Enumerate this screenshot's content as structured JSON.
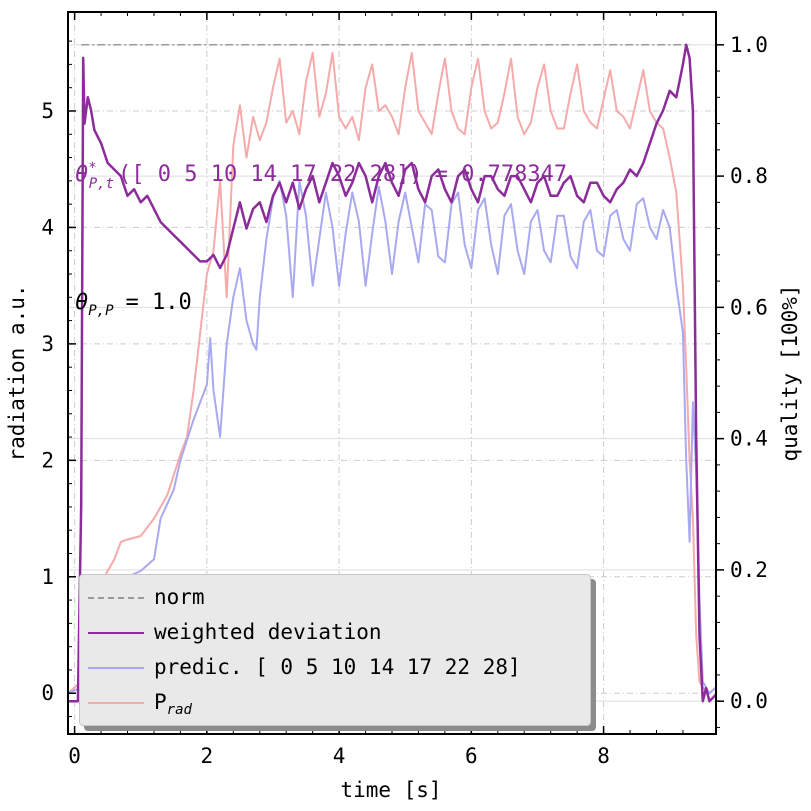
{
  "chart_data": {
    "type": "line",
    "xlabel": "time [s]",
    "ylabel_left": "radiation a.u.",
    "ylabel_right": "quality [100%]",
    "xlim": [
      -0.1,
      9.7
    ],
    "ylim_left": [
      -0.35,
      5.85
    ],
    "ylim_right": [
      -0.05,
      1.05
    ],
    "x_ticks": [
      "0",
      "2",
      "4",
      "6",
      "8"
    ],
    "y_left_ticks": [
      "0",
      "1",
      "2",
      "3",
      "4",
      "5"
    ],
    "y_right_ticks": [
      "0.0",
      "0.2",
      "0.4",
      "0.6",
      "0.8",
      "1.0"
    ],
    "grid": true,
    "legend_placement": "lower-left",
    "colors": {
      "norm": "#9a9a9a",
      "weighted": "#8b2c9a",
      "predic": "#a9a9f2",
      "prad": "#f6aaaa",
      "legend_bg": "#e9e9e9"
    },
    "annotations": {
      "theta_eq_text": "= 0.778347",
      "theta_pp_text": "= 1.0",
      "theta_sym": "θ",
      "theta_sub_pt": "P,t",
      "theta_sub_pp": "P,P",
      "theta_star": "*",
      "arg_text": "([ 0  5 10 14 17 22 28])"
    },
    "legend": {
      "norm": "norm",
      "weighted": "weighted deviation",
      "predic": "predic. [ 0  5 10 14 17 22 28]",
      "prad_main": "P",
      "prad_sub": "rad"
    },
    "series": [
      {
        "name": "norm",
        "axis": "right",
        "x": [
          0.1,
          9.3
        ],
        "y": [
          1.0,
          1.0
        ]
      },
      {
        "name": "P_rad",
        "axis": "left",
        "x": [
          -0.1,
          0.1,
          0.3,
          0.4,
          0.5,
          0.6,
          0.7,
          0.8,
          1.0,
          1.2,
          1.4,
          1.6,
          1.7,
          1.8,
          2.0,
          2.1,
          2.2,
          2.3,
          2.4,
          2.5,
          2.6,
          2.7,
          2.8,
          2.9,
          3.0,
          3.1,
          3.2,
          3.3,
          3.4,
          3.5,
          3.6,
          3.7,
          3.8,
          3.9,
          4.0,
          4.1,
          4.2,
          4.3,
          4.4,
          4.5,
          4.6,
          4.7,
          4.8,
          4.9,
          5.0,
          5.1,
          5.2,
          5.3,
          5.4,
          5.5,
          5.6,
          5.7,
          5.8,
          5.9,
          6.0,
          6.1,
          6.2,
          6.3,
          6.4,
          6.5,
          6.6,
          6.7,
          6.8,
          6.9,
          7.0,
          7.1,
          7.2,
          7.3,
          7.4,
          7.5,
          7.6,
          7.7,
          7.8,
          7.9,
          8.0,
          8.1,
          8.2,
          8.3,
          8.4,
          8.5,
          8.6,
          8.7,
          8.8,
          8.9,
          9.0,
          9.1,
          9.2,
          9.25,
          9.3,
          9.35,
          9.4,
          9.45,
          9.5,
          9.6,
          9.7
        ],
        "y": [
          0.0,
          0.1,
          0.6,
          0.95,
          1.05,
          1.15,
          1.3,
          1.32,
          1.35,
          1.5,
          1.7,
          2.05,
          2.2,
          2.6,
          3.6,
          3.8,
          4.4,
          3.4,
          4.7,
          5.05,
          4.6,
          4.95,
          4.75,
          4.9,
          5.2,
          5.45,
          4.9,
          5.0,
          4.8,
          5.25,
          5.5,
          4.95,
          5.15,
          5.5,
          4.95,
          4.85,
          4.95,
          4.75,
          5.2,
          5.4,
          5.0,
          5.05,
          4.95,
          4.8,
          5.2,
          5.5,
          5.0,
          4.9,
          4.8,
          5.15,
          5.45,
          5.0,
          4.85,
          4.8,
          5.2,
          5.45,
          5.0,
          4.85,
          4.9,
          5.15,
          5.45,
          4.95,
          4.8,
          4.9,
          5.2,
          5.4,
          5.0,
          4.85,
          4.85,
          5.15,
          5.4,
          5.0,
          4.9,
          4.85,
          5.1,
          5.35,
          5.0,
          4.95,
          4.85,
          5.1,
          5.35,
          5.0,
          4.9,
          4.85,
          4.6,
          4.3,
          3.5,
          2.8,
          2.0,
          1.5,
          0.5,
          0.1,
          0.05,
          0.0,
          0.05
        ]
      },
      {
        "name": "predic. [ 0  5 10 14 17 22 28]",
        "axis": "left",
        "x": [
          -0.1,
          0.1,
          0.3,
          0.4,
          0.5,
          0.6,
          0.8,
          1.0,
          1.2,
          1.3,
          1.5,
          1.6,
          1.8,
          2.0,
          2.05,
          2.1,
          2.2,
          2.3,
          2.4,
          2.5,
          2.6,
          2.7,
          2.75,
          2.8,
          2.9,
          3.0,
          3.1,
          3.2,
          3.3,
          3.4,
          3.5,
          3.6,
          3.7,
          3.8,
          3.9,
          4.0,
          4.1,
          4.2,
          4.3,
          4.4,
          4.5,
          4.6,
          4.7,
          4.8,
          4.9,
          5.0,
          5.1,
          5.2,
          5.3,
          5.4,
          5.5,
          5.6,
          5.7,
          5.8,
          5.9,
          6.0,
          6.1,
          6.2,
          6.3,
          6.4,
          6.5,
          6.6,
          6.7,
          6.8,
          6.9,
          7.0,
          7.1,
          7.2,
          7.3,
          7.4,
          7.5,
          7.6,
          7.7,
          7.8,
          7.9,
          8.0,
          8.1,
          8.2,
          8.3,
          8.4,
          8.5,
          8.6,
          8.7,
          8.8,
          8.9,
          9.0,
          9.1,
          9.2,
          9.25,
          9.3,
          9.35,
          9.4,
          9.45,
          9.5,
          9.6,
          9.7
        ],
        "y": [
          0.0,
          0.05,
          0.55,
          0.8,
          0.95,
          1.0,
          1.0,
          1.05,
          1.15,
          1.5,
          1.75,
          2.0,
          2.35,
          2.65,
          3.05,
          2.6,
          2.2,
          3.0,
          3.4,
          3.65,
          3.2,
          3.0,
          2.95,
          3.4,
          3.9,
          4.25,
          4.4,
          4.1,
          3.4,
          4.4,
          4.1,
          3.5,
          3.9,
          4.3,
          4.0,
          3.5,
          3.95,
          4.3,
          4.05,
          3.5,
          3.95,
          4.35,
          4.05,
          3.6,
          4.05,
          4.3,
          4.0,
          3.7,
          4.2,
          4.15,
          3.75,
          3.7,
          4.2,
          4.3,
          3.85,
          3.65,
          4.15,
          4.25,
          3.85,
          3.6,
          4.1,
          4.2,
          3.8,
          3.6,
          4.05,
          4.15,
          3.8,
          3.7,
          4.1,
          4.1,
          3.75,
          3.65,
          4.05,
          4.15,
          3.8,
          3.75,
          4.1,
          4.15,
          3.9,
          3.8,
          4.2,
          4.25,
          4.0,
          3.9,
          4.15,
          4.0,
          3.5,
          3.1,
          2.0,
          1.3,
          2.5,
          1.9,
          0.8,
          0.1,
          0.0,
          0.05
        ]
      },
      {
        "name": "weighted deviation",
        "axis": "right",
        "x": [
          -0.1,
          0.05,
          0.1,
          0.13,
          0.15,
          0.2,
          0.25,
          0.3,
          0.4,
          0.5,
          0.6,
          0.7,
          0.8,
          0.9,
          1.0,
          1.1,
          1.2,
          1.3,
          1.4,
          1.5,
          1.6,
          1.7,
          1.8,
          1.9,
          2.0,
          2.1,
          2.2,
          2.3,
          2.4,
          2.5,
          2.6,
          2.7,
          2.8,
          2.9,
          3.0,
          3.1,
          3.2,
          3.3,
          3.4,
          3.5,
          3.6,
          3.7,
          3.8,
          3.9,
          4.0,
          4.1,
          4.2,
          4.3,
          4.4,
          4.5,
          4.6,
          4.7,
          4.8,
          4.9,
          5.0,
          5.1,
          5.2,
          5.3,
          5.4,
          5.5,
          5.6,
          5.7,
          5.8,
          5.9,
          6.0,
          6.1,
          6.2,
          6.3,
          6.4,
          6.5,
          6.6,
          6.7,
          6.8,
          6.9,
          7.0,
          7.1,
          7.2,
          7.3,
          7.4,
          7.5,
          7.6,
          7.7,
          7.8,
          7.9,
          8.0,
          8.1,
          8.2,
          8.3,
          8.4,
          8.5,
          8.6,
          8.7,
          8.8,
          8.9,
          9.0,
          9.1,
          9.2,
          9.25,
          9.3,
          9.35,
          9.4,
          9.45,
          9.5,
          9.55,
          9.6,
          9.7
        ],
        "y": [
          0.0,
          0.0,
          0.3,
          0.98,
          0.88,
          0.92,
          0.9,
          0.87,
          0.85,
          0.82,
          0.81,
          0.8,
          0.77,
          0.78,
          0.76,
          0.77,
          0.75,
          0.73,
          0.72,
          0.71,
          0.7,
          0.69,
          0.68,
          0.67,
          0.67,
          0.68,
          0.66,
          0.68,
          0.72,
          0.76,
          0.72,
          0.75,
          0.76,
          0.73,
          0.77,
          0.79,
          0.76,
          0.79,
          0.75,
          0.78,
          0.8,
          0.76,
          0.79,
          0.82,
          0.8,
          0.77,
          0.79,
          0.82,
          0.8,
          0.76,
          0.8,
          0.82,
          0.79,
          0.77,
          0.81,
          0.82,
          0.78,
          0.76,
          0.8,
          0.81,
          0.78,
          0.76,
          0.8,
          0.81,
          0.78,
          0.76,
          0.8,
          0.8,
          0.78,
          0.77,
          0.8,
          0.8,
          0.78,
          0.76,
          0.79,
          0.8,
          0.77,
          0.77,
          0.79,
          0.8,
          0.77,
          0.76,
          0.79,
          0.79,
          0.77,
          0.76,
          0.78,
          0.79,
          0.81,
          0.8,
          0.82,
          0.85,
          0.88,
          0.9,
          0.93,
          0.92,
          0.97,
          1.0,
          0.98,
          0.9,
          0.4,
          0.1,
          0.0,
          0.02,
          0.0,
          0.01
        ]
      }
    ]
  }
}
